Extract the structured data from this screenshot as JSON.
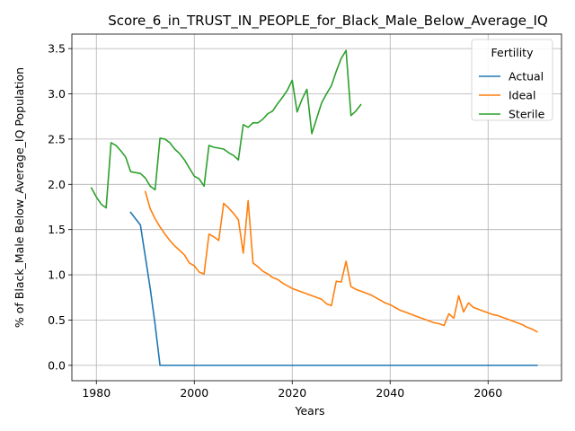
{
  "chart_data": {
    "type": "line",
    "title": "Score_6_in_TRUST_IN_PEOPLE_for_Black_Male_Below_Average_IQ",
    "xlabel": "Years",
    "ylabel": "% of Black_Male Below_Average_IQ Population",
    "xlim": [
      1975,
      2075
    ],
    "ylim": [
      -0.17,
      3.66
    ],
    "xticks": [
      1980,
      2000,
      2020,
      2040,
      2060
    ],
    "yticks": [
      0.0,
      0.5,
      1.0,
      1.5,
      2.0,
      2.5,
      3.0,
      3.5
    ],
    "grid": true,
    "legend": {
      "title": "Fertility",
      "placement": "top-right"
    },
    "series": [
      {
        "name": "Actual",
        "color": "#1f77b4",
        "points": [
          [
            1987,
            1.69
          ],
          [
            1989,
            1.55
          ],
          [
            1990,
            1.2
          ],
          [
            1991,
            0.85
          ],
          [
            1992,
            0.45
          ],
          [
            1993,
            0.0
          ],
          [
            2070,
            0.0
          ]
        ]
      },
      {
        "name": "Ideal",
        "color": "#ff7f0e",
        "points": [
          [
            1990,
            1.92
          ],
          [
            1991,
            1.73
          ],
          [
            1992,
            1.62
          ],
          [
            1993,
            1.53
          ],
          [
            1994,
            1.45
          ],
          [
            1995,
            1.38
          ],
          [
            1996,
            1.32
          ],
          [
            1997,
            1.27
          ],
          [
            1998,
            1.22
          ],
          [
            1999,
            1.13
          ],
          [
            2000,
            1.1
          ],
          [
            2001,
            1.03
          ],
          [
            2002,
            1.01
          ],
          [
            2003,
            1.45
          ],
          [
            2004,
            1.42
          ],
          [
            2005,
            1.38
          ],
          [
            2006,
            1.79
          ],
          [
            2007,
            1.74
          ],
          [
            2008,
            1.68
          ],
          [
            2009,
            1.61
          ],
          [
            2010,
            1.24
          ],
          [
            2011,
            1.82
          ],
          [
            2012,
            1.13
          ],
          [
            2013,
            1.09
          ],
          [
            2014,
            1.04
          ],
          [
            2015,
            1.01
          ],
          [
            2016,
            0.97
          ],
          [
            2017,
            0.95
          ],
          [
            2018,
            0.91
          ],
          [
            2019,
            0.88
          ],
          [
            2020,
            0.85
          ],
          [
            2021,
            0.83
          ],
          [
            2022,
            0.81
          ],
          [
            2023,
            0.79
          ],
          [
            2024,
            0.77
          ],
          [
            2025,
            0.75
          ],
          [
            2026,
            0.73
          ],
          [
            2027,
            0.68
          ],
          [
            2028,
            0.66
          ],
          [
            2029,
            0.93
          ],
          [
            2030,
            0.92
          ],
          [
            2031,
            1.15
          ],
          [
            2032,
            0.87
          ],
          [
            2033,
            0.84
          ],
          [
            2034,
            0.82
          ],
          [
            2035,
            0.8
          ],
          [
            2036,
            0.78
          ],
          [
            2037,
            0.75
          ],
          [
            2038,
            0.72
          ],
          [
            2039,
            0.69
          ],
          [
            2040,
            0.67
          ],
          [
            2041,
            0.64
          ],
          [
            2042,
            0.61
          ],
          [
            2043,
            0.59
          ],
          [
            2044,
            0.57
          ],
          [
            2045,
            0.55
          ],
          [
            2046,
            0.53
          ],
          [
            2047,
            0.51
          ],
          [
            2048,
            0.49
          ],
          [
            2049,
            0.47
          ],
          [
            2050,
            0.46
          ],
          [
            2051,
            0.44
          ],
          [
            2052,
            0.57
          ],
          [
            2053,
            0.52
          ],
          [
            2054,
            0.77
          ],
          [
            2055,
            0.59
          ],
          [
            2056,
            0.69
          ],
          [
            2057,
            0.64
          ],
          [
            2058,
            0.62
          ],
          [
            2059,
            0.6
          ],
          [
            2060,
            0.58
          ],
          [
            2061,
            0.56
          ],
          [
            2062,
            0.55
          ],
          [
            2063,
            0.53
          ],
          [
            2064,
            0.51
          ],
          [
            2065,
            0.49
          ],
          [
            2066,
            0.47
          ],
          [
            2067,
            0.45
          ],
          [
            2068,
            0.42
          ],
          [
            2069,
            0.4
          ],
          [
            2070,
            0.37
          ]
        ]
      },
      {
        "name": "Sterile",
        "color": "#2ca02c",
        "points": [
          [
            1979,
            1.96
          ],
          [
            1980,
            1.86
          ],
          [
            1981,
            1.78
          ],
          [
            1982,
            1.74
          ],
          [
            1983,
            2.46
          ],
          [
            1984,
            2.43
          ],
          [
            1985,
            2.37
          ],
          [
            1986,
            2.3
          ],
          [
            1987,
            2.14
          ],
          [
            1988,
            2.13
          ],
          [
            1989,
            2.12
          ],
          [
            1990,
            2.07
          ],
          [
            1991,
            1.98
          ],
          [
            1992,
            1.94
          ],
          [
            1993,
            2.51
          ],
          [
            1994,
            2.5
          ],
          [
            1995,
            2.46
          ],
          [
            1996,
            2.39
          ],
          [
            1997,
            2.34
          ],
          [
            1998,
            2.27
          ],
          [
            1999,
            2.18
          ],
          [
            2000,
            2.09
          ],
          [
            2001,
            2.06
          ],
          [
            2002,
            1.98
          ],
          [
            2003,
            2.43
          ],
          [
            2004,
            2.41
          ],
          [
            2005,
            2.4
          ],
          [
            2006,
            2.39
          ],
          [
            2007,
            2.35
          ],
          [
            2008,
            2.32
          ],
          [
            2009,
            2.27
          ],
          [
            2010,
            2.66
          ],
          [
            2011,
            2.63
          ],
          [
            2012,
            2.68
          ],
          [
            2013,
            2.68
          ],
          [
            2014,
            2.72
          ],
          [
            2015,
            2.78
          ],
          [
            2016,
            2.81
          ],
          [
            2017,
            2.89
          ],
          [
            2018,
            2.96
          ],
          [
            2019,
            3.04
          ],
          [
            2020,
            3.15
          ],
          [
            2021,
            2.8
          ],
          [
            2022,
            2.94
          ],
          [
            2023,
            3.05
          ],
          [
            2024,
            2.56
          ],
          [
            2025,
            2.73
          ],
          [
            2026,
            2.9
          ],
          [
            2027,
            3.0
          ],
          [
            2028,
            3.09
          ],
          [
            2029,
            3.25
          ],
          [
            2030,
            3.39
          ],
          [
            2031,
            3.48
          ],
          [
            2032,
            2.76
          ],
          [
            2033,
            2.81
          ],
          [
            2034,
            2.88
          ]
        ]
      }
    ]
  }
}
